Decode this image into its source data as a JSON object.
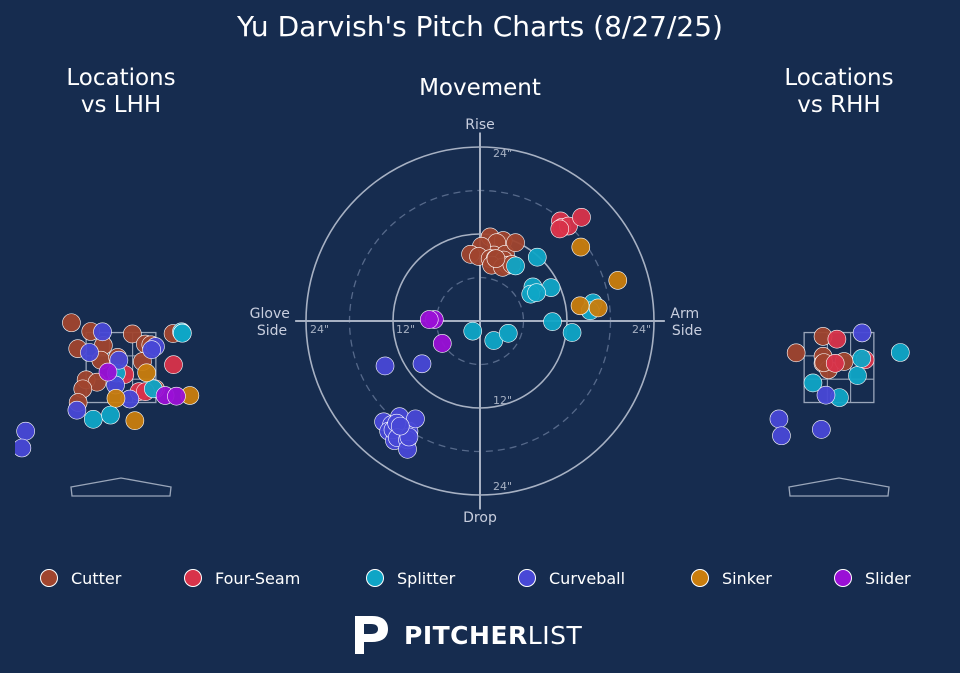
{
  "title": "Yu Darvish's Pitch Charts (8/27/25)",
  "panels": {
    "lhh_title": "Locations\nvs LHH",
    "movement_title": "Movement",
    "rhh_title": "Locations\nvs RHH"
  },
  "movement_labels": {
    "top": "Rise",
    "bottom": "Drop",
    "left": "Glove\nSide",
    "right": "Arm\nSide",
    "rings": [
      "12\"",
      "24\""
    ]
  },
  "brand": {
    "logo": "pitcherlist-logo-icon",
    "bold": "PITCHER",
    "light": "LIST"
  },
  "legend": [
    {
      "name": "Cutter",
      "color": "#a0452e"
    },
    {
      "name": "Four-Seam",
      "color": "#d8334a"
    },
    {
      "name": "Splitter",
      "color": "#0fa5c6"
    },
    {
      "name": "Curveball",
      "color": "#4848d6"
    },
    {
      "name": "Sinker",
      "color": "#c97d0d"
    },
    {
      "name": "Slider",
      "color": "#9a10d6"
    }
  ],
  "chart_data": [
    {
      "type": "scatter",
      "title": "Locations vs LHH",
      "xlim": [
        -2.4,
        2.4
      ],
      "ylim": [
        -0.6,
        5.0
      ],
      "strike_zone": {
        "x": [
          -0.83,
          0.83
        ],
        "y": [
          1.5,
          3.5
        ]
      },
      "series": [
        {
          "name": "Cutter",
          "points": [
            [
              -1.18,
              3.78
            ],
            [
              -0.72,
              3.53
            ],
            [
              0.27,
              3.46
            ],
            [
              -1.03,
              3.04
            ],
            [
              -0.42,
              3.13
            ],
            [
              0.58,
              3.17
            ],
            [
              0.71,
              3.15
            ],
            [
              1.24,
              3.47
            ],
            [
              -0.48,
              2.71
            ],
            [
              -0.08,
              2.79
            ],
            [
              0.51,
              2.67
            ],
            [
              -0.83,
              2.15
            ],
            [
              -0.57,
              2.08
            ],
            [
              -0.91,
              1.89
            ],
            [
              0.82,
              1.89
            ],
            [
              -1.02,
              1.5
            ]
          ]
        },
        {
          "name": "Four-Seam",
          "points": [
            [
              1.25,
              2.58
            ],
            [
              0.09,
              2.3
            ],
            [
              0.43,
              1.81
            ],
            [
              0.58,
              1.81
            ]
          ]
        },
        {
          "name": "Splitter",
          "points": [
            [
              1.44,
              3.52
            ],
            [
              1.46,
              3.49
            ],
            [
              -0.11,
              2.34
            ],
            [
              0.77,
              1.89
            ],
            [
              -0.66,
              1.02
            ],
            [
              -0.25,
              1.14
            ],
            [
              1.46,
              3.48
            ]
          ]
        },
        {
          "name": "Curveball",
          "points": [
            [
              -0.44,
              3.52
            ],
            [
              0.82,
              3.1
            ],
            [
              0.73,
              3.01
            ],
            [
              -0.75,
              2.93
            ],
            [
              -0.05,
              2.71
            ],
            [
              -0.13,
              2.0
            ],
            [
              0.21,
              1.6
            ],
            [
              -1.05,
              1.28
            ],
            [
              -2.27,
              0.68
            ],
            [
              -2.36,
              0.2
            ]
          ]
        },
        {
          "name": "Sinker",
          "points": [
            [
              0.61,
              2.35
            ],
            [
              -0.12,
              1.62
            ],
            [
              0.33,
              0.98
            ],
            [
              1.64,
              1.7
            ]
          ]
        },
        {
          "name": "Slider",
          "points": [
            [
              -0.31,
              2.37
            ],
            [
              1.05,
              1.7
            ],
            [
              1.32,
              1.68
            ]
          ]
        }
      ]
    },
    {
      "type": "scatter",
      "title": "Movement",
      "xlabel": "Glove Side / Arm Side",
      "ylabel": "Drop / Rise",
      "xlim": [
        -24,
        24
      ],
      "ylim": [
        -24,
        24
      ],
      "rings": [
        6,
        12,
        18,
        24
      ],
      "series": [
        {
          "name": "Cutter",
          "points": [
            [
              1.4,
              11.6
            ],
            [
              3.2,
              11.1
            ],
            [
              2.3,
              10.8
            ],
            [
              1.9,
              9.1
            ],
            [
              3.5,
              9.2
            ],
            [
              4.9,
              10.8
            ],
            [
              0.2,
              10.3
            ],
            [
              -1.3,
              9.2
            ],
            [
              -0.2,
              8.9
            ],
            [
              1.4,
              8.6
            ],
            [
              2.1,
              8.6
            ],
            [
              3.3,
              8.4
            ],
            [
              1.6,
              7.7
            ],
            [
              3.9,
              7.7
            ],
            [
              3.1,
              7.4
            ],
            [
              4.4,
              7.8
            ],
            [
              2.2,
              8.6
            ]
          ]
        },
        {
          "name": "Four-Seam",
          "points": [
            [
              11.1,
              13.8
            ],
            [
              11.3,
              12.9
            ],
            [
              12.2,
              13.1
            ],
            [
              14.0,
              14.3
            ],
            [
              11.0,
              12.7
            ]
          ]
        },
        {
          "name": "Splitter",
          "points": [
            [
              4.9,
              7.6
            ],
            [
              7.9,
              8.8
            ],
            [
              9.8,
              4.6
            ],
            [
              7.3,
              4.7
            ],
            [
              7.0,
              3.7
            ],
            [
              7.8,
              3.9
            ],
            [
              15.6,
              2.5
            ],
            [
              10.0,
              -0.1
            ],
            [
              15.2,
              1.4
            ],
            [
              12.7,
              -1.6
            ],
            [
              -1.0,
              -1.4
            ],
            [
              1.9,
              -2.7
            ],
            [
              3.9,
              -1.7
            ]
          ]
        },
        {
          "name": "Curveball",
          "points": [
            [
              -13.1,
              -6.2
            ],
            [
              -8.0,
              -5.9
            ],
            [
              -13.3,
              -13.9
            ],
            [
              -12.2,
              -14.3
            ],
            [
              -12.6,
              -15.2
            ],
            [
              -9.8,
              -15.2
            ],
            [
              -11.8,
              -16.5
            ],
            [
              -12.0,
              -15.0
            ],
            [
              -11.1,
              -13.2
            ],
            [
              -8.9,
              -13.5
            ],
            [
              -11.5,
              -14.1
            ],
            [
              -11.4,
              -16.1
            ],
            [
              -10.0,
              -16.4
            ],
            [
              -10.0,
              -17.7
            ],
            [
              -9.8,
              -16.0
            ],
            [
              -11.0,
              -14.5
            ]
          ]
        },
        {
          "name": "Sinker",
          "points": [
            [
              13.9,
              10.2
            ],
            [
              19.0,
              5.6
            ],
            [
              16.3,
              1.8
            ],
            [
              13.8,
              2.1
            ]
          ]
        },
        {
          "name": "Slider",
          "points": [
            [
              -6.3,
              0.2
            ],
            [
              -7.0,
              0.2
            ],
            [
              -5.2,
              -3.1
            ]
          ]
        }
      ]
    },
    {
      "type": "scatter",
      "title": "Locations vs RHH",
      "xlim": [
        -2.4,
        2.4
      ],
      "ylim": [
        -0.6,
        5.0
      ],
      "strike_zone": {
        "x": [
          -0.83,
          0.83
        ],
        "y": [
          1.5,
          3.5
        ]
      },
      "series": [
        {
          "name": "Cutter",
          "points": [
            [
              -0.38,
              3.39
            ],
            [
              -0.38,
              2.82
            ],
            [
              -0.38,
              2.62
            ],
            [
              -0.25,
              2.44
            ],
            [
              0.12,
              2.67
            ],
            [
              -1.02,
              2.92
            ],
            [
              -0.36,
              2.64
            ]
          ]
        },
        {
          "name": "Four-Seam",
          "points": [
            [
              -0.05,
              3.31
            ],
            [
              0.62,
              2.72
            ],
            [
              -0.09,
              2.62
            ]
          ]
        },
        {
          "name": "Splitter",
          "points": [
            [
              0.44,
              2.27
            ],
            [
              0.54,
              2.76
            ],
            [
              1.46,
              2.93
            ],
            [
              0.01,
              1.64
            ],
            [
              -0.62,
              2.06
            ]
          ]
        },
        {
          "name": "Curveball",
          "points": [
            [
              0.55,
              3.49
            ],
            [
              -0.31,
              1.71
            ],
            [
              -1.43,
              1.03
            ],
            [
              -1.37,
              0.55
            ],
            [
              -0.42,
              0.73
            ]
          ]
        }
      ]
    }
  ]
}
